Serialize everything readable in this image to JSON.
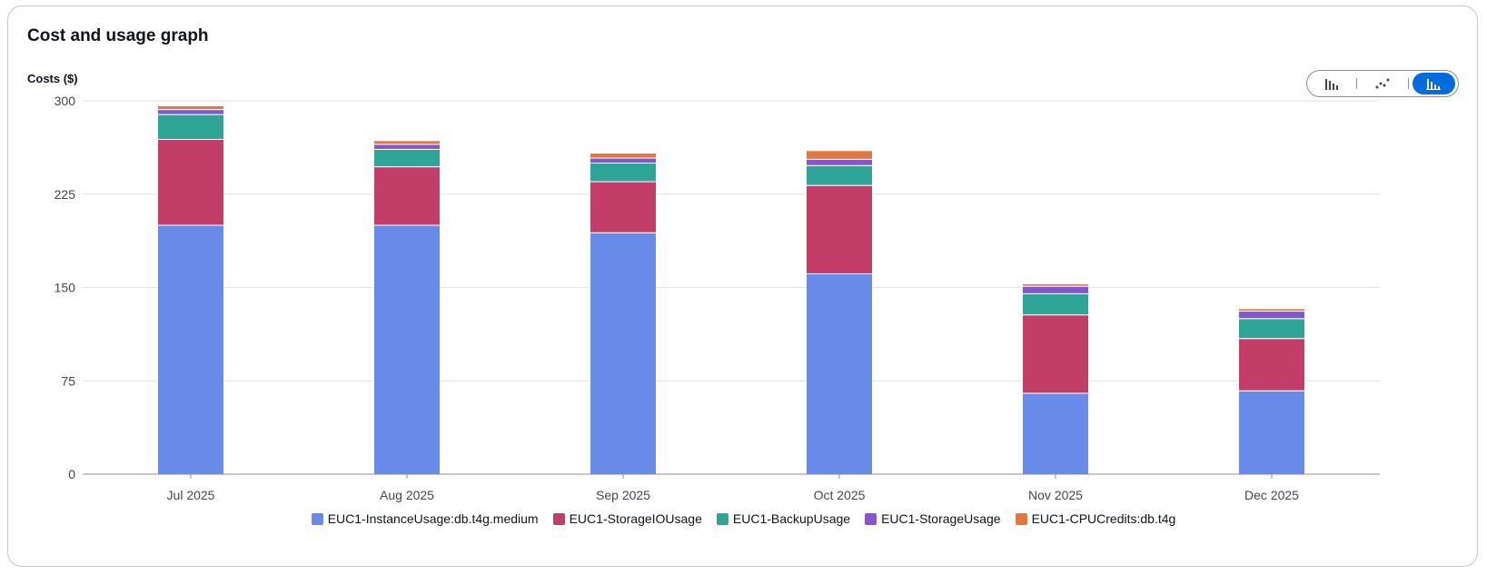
{
  "card": {
    "title": "Cost and usage graph"
  },
  "chart_toggles": {
    "options": [
      {
        "name": "bar-chart-icon",
        "active": false
      },
      {
        "name": "line-chart-icon",
        "active": false
      },
      {
        "name": "stacked-bar-chart-icon",
        "active": true
      }
    ]
  },
  "colors": {
    "accent": "#006ce0",
    "gridline": "#e1e1e6",
    "axis": "#8c8c94"
  },
  "chart_data": {
    "type": "bar",
    "stacked": true,
    "title": "",
    "xlabel": "",
    "ylabel": "Costs ($)",
    "ylim": [
      0,
      300
    ],
    "yticks": [
      0,
      75,
      150,
      225,
      300
    ],
    "grid": true,
    "legend_position": "bottom",
    "categories": [
      "Jul 2025",
      "Aug 2025",
      "Sep 2025",
      "Oct 2025",
      "Nov 2025",
      "Dec 2025"
    ],
    "series": [
      {
        "name": "EUC1-InstanceUsage:db.t4g.medium",
        "color": "#688ae8",
        "values": [
          200,
          200,
          194,
          161,
          65,
          67
        ]
      },
      {
        "name": "EUC1-StorageIOUsage",
        "color": "#c33d69",
        "values": [
          69,
          47,
          41,
          71,
          63,
          42
        ]
      },
      {
        "name": "EUC1-BackupUsage",
        "color": "#2ea597",
        "values": [
          20,
          14,
          15,
          16,
          17,
          16
        ]
      },
      {
        "name": "EUC1-StorageUsage",
        "color": "#8456ce",
        "values": [
          4,
          4,
          4,
          5,
          6,
          6
        ]
      },
      {
        "name": "EUC1-CPUCredits:db.t4g",
        "color": "#e07941",
        "values": [
          3,
          3,
          4,
          7,
          2,
          2
        ]
      }
    ]
  }
}
